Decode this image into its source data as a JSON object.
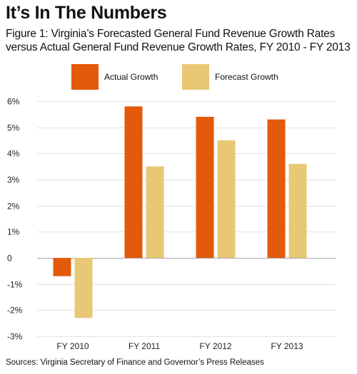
{
  "header": {
    "title": "It’s In The Numbers",
    "subtitle": "Figure 1: Virginia’s Forecasted General Fund Revenue Growth Rates versus Actual General Fund Revenue Growth Rates, FY 2010 - FY 2013"
  },
  "colors": {
    "actual": "#e35a0a",
    "forecast": "#e8c874",
    "grid": "#e3e3e3",
    "zero": "#aaaaaa"
  },
  "chart_data": {
    "type": "bar",
    "categories": [
      "FY 2010",
      "FY 2011",
      "FY 2012",
      "FY 2013"
    ],
    "series": [
      {
        "name": "Actual Growth",
        "values": [
          -0.7,
          5.8,
          5.4,
          5.3
        ]
      },
      {
        "name": "Forecast Growth",
        "values": [
          -2.3,
          3.5,
          4.5,
          3.6
        ]
      }
    ],
    "ylim": [
      -3,
      6
    ],
    "yticks": [
      6,
      5,
      4,
      3,
      2,
      1,
      0,
      -1,
      -2,
      -3
    ],
    "ytick_labels": [
      "6%",
      "5%",
      "4%",
      "3%",
      "2%",
      "1%",
      "0",
      "-1%",
      "-2%",
      "-3%"
    ],
    "grid": true,
    "legend_position": "top"
  },
  "footer": {
    "source": "Sources: Virginia Secretary of Finance and Governor’s Press Releases"
  }
}
